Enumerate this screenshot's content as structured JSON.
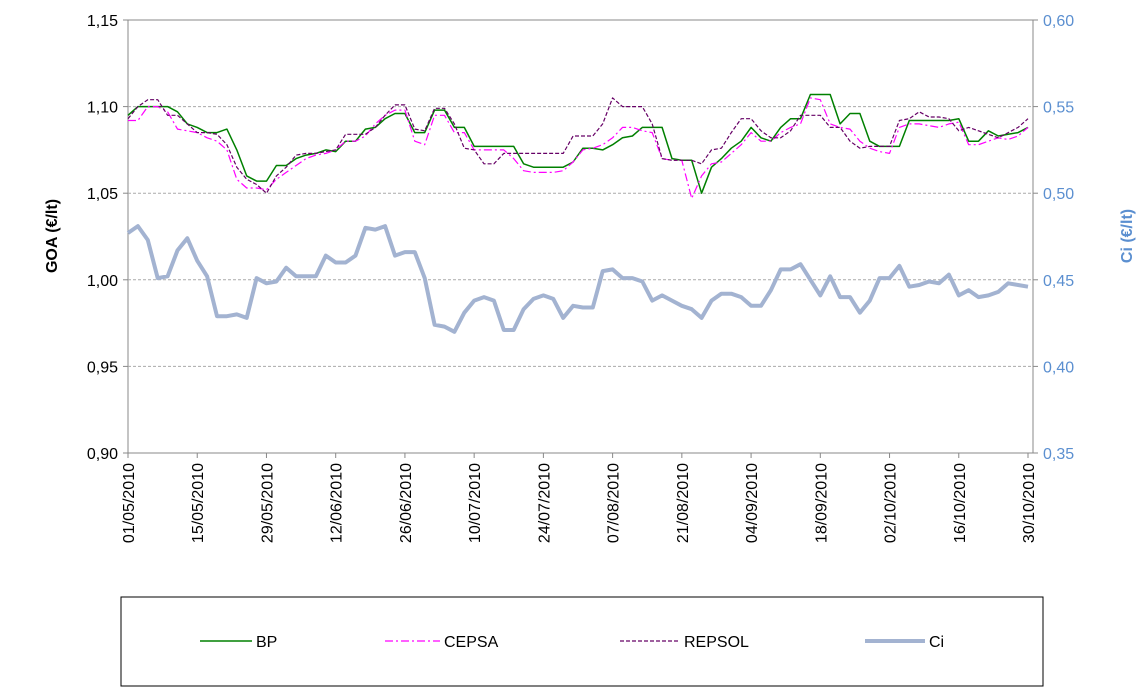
{
  "chart_data": {
    "type": "line",
    "x": [
      "01/05/2010",
      "03/05/2010",
      "05/05/2010",
      "07/05/2010",
      "09/05/2010",
      "11/05/2010",
      "13/05/2010",
      "15/05/2010",
      "17/05/2010",
      "19/05/2010",
      "21/05/2010",
      "23/05/2010",
      "25/05/2010",
      "27/05/2010",
      "29/05/2010",
      "31/05/2010",
      "02/06/2010",
      "04/06/2010",
      "06/06/2010",
      "08/06/2010",
      "10/06/2010",
      "12/06/2010",
      "14/06/2010",
      "16/06/2010",
      "18/06/2010",
      "20/06/2010",
      "22/06/2010",
      "24/06/2010",
      "26/06/2010",
      "28/06/2010",
      "30/06/2010",
      "02/07/2010",
      "04/07/2010",
      "06/07/2010",
      "08/07/2010",
      "10/07/2010",
      "12/07/2010",
      "14/07/2010",
      "16/07/2010",
      "18/07/2010",
      "20/07/2010",
      "22/07/2010",
      "24/07/2010",
      "26/07/2010",
      "28/07/2010",
      "30/07/2010",
      "01/08/2010",
      "03/08/2010",
      "05/08/2010",
      "07/08/2010",
      "09/08/2010",
      "11/08/2010",
      "13/08/2010",
      "15/08/2010",
      "17/08/2010",
      "19/08/2010",
      "21/08/2010",
      "23/08/2010",
      "25/08/2010",
      "27/08/2010",
      "29/08/2010",
      "31/08/2010",
      "02/09/2010",
      "04/09/2010",
      "06/09/2010",
      "08/09/2010",
      "10/09/2010",
      "12/09/2010",
      "14/09/2010",
      "16/09/2010",
      "18/09/2010",
      "20/09/2010",
      "22/09/2010",
      "24/09/2010",
      "26/09/2010",
      "28/09/2010",
      "30/09/2010",
      "02/10/2010",
      "04/10/2010",
      "06/10/2010",
      "08/10/2010",
      "10/10/2010",
      "12/10/2010",
      "14/10/2010",
      "16/10/2010",
      "18/10/2010",
      "20/10/2010",
      "22/10/2010",
      "24/10/2010",
      "26/10/2010",
      "28/10/2010",
      "30/10/2010"
    ],
    "series": [
      {
        "name": "BP",
        "color": "#008000",
        "dash": "solid",
        "width": 1.5,
        "values": [
          1.095,
          1.1,
          1.1,
          1.1,
          1.1,
          1.097,
          1.09,
          1.088,
          1.085,
          1.085,
          1.087,
          1.075,
          1.06,
          1.057,
          1.057,
          1.066,
          1.066,
          1.07,
          1.072,
          1.073,
          1.075,
          1.074,
          1.08,
          1.08,
          1.087,
          1.088,
          1.093,
          1.096,
          1.096,
          1.085,
          1.085,
          1.098,
          1.098,
          1.088,
          1.088,
          1.077,
          1.077,
          1.077,
          1.077,
          1.077,
          1.067,
          1.065,
          1.065,
          1.065,
          1.065,
          1.068,
          1.076,
          1.076,
          1.075,
          1.078,
          1.082,
          1.083,
          1.088,
          1.088,
          1.088,
          1.07,
          1.069,
          1.069,
          1.05,
          1.065,
          1.07,
          1.076,
          1.08,
          1.088,
          1.082,
          1.08,
          1.088,
          1.093,
          1.093,
          1.107,
          1.107,
          1.107,
          1.09,
          1.096,
          1.096,
          1.08,
          1.077,
          1.077,
          1.077,
          1.092,
          1.092,
          1.092,
          1.092,
          1.092,
          1.093,
          1.08,
          1.08,
          1.086,
          1.083,
          1.084,
          1.085,
          1.088
        ]
      },
      {
        "name": "CEPSA",
        "color": "#ff00ff",
        "dash": "dashdot",
        "width": 1.2,
        "values": [
          1.092,
          1.092,
          1.1,
          1.1,
          1.097,
          1.087,
          1.086,
          1.085,
          1.082,
          1.08,
          1.075,
          1.058,
          1.053,
          1.053,
          1.052,
          1.058,
          1.062,
          1.066,
          1.07,
          1.072,
          1.073,
          1.075,
          1.08,
          1.08,
          1.083,
          1.09,
          1.095,
          1.098,
          1.098,
          1.08,
          1.078,
          1.095,
          1.095,
          1.085,
          1.085,
          1.075,
          1.075,
          1.075,
          1.075,
          1.07,
          1.063,
          1.062,
          1.062,
          1.062,
          1.063,
          1.068,
          1.075,
          1.076,
          1.078,
          1.082,
          1.088,
          1.088,
          1.086,
          1.085,
          1.07,
          1.069,
          1.069,
          1.047,
          1.06,
          1.067,
          1.068,
          1.073,
          1.078,
          1.085,
          1.08,
          1.08,
          1.085,
          1.088,
          1.09,
          1.105,
          1.104,
          1.09,
          1.088,
          1.087,
          1.08,
          1.076,
          1.074,
          1.073,
          1.088,
          1.09,
          1.09,
          1.089,
          1.088,
          1.09,
          1.091,
          1.078,
          1.078,
          1.08,
          1.082,
          1.081,
          1.083,
          1.088
        ]
      },
      {
        "name": "REPSOL",
        "color": "#660066",
        "dash": "dash",
        "width": 1.2,
        "values": [
          1.093,
          1.1,
          1.104,
          1.104,
          1.095,
          1.095,
          1.09,
          1.085,
          1.085,
          1.084,
          1.078,
          1.065,
          1.058,
          1.055,
          1.05,
          1.06,
          1.065,
          1.072,
          1.073,
          1.073,
          1.074,
          1.075,
          1.084,
          1.084,
          1.084,
          1.088,
          1.095,
          1.101,
          1.101,
          1.087,
          1.086,
          1.099,
          1.099,
          1.09,
          1.076,
          1.075,
          1.067,
          1.067,
          1.073,
          1.073,
          1.073,
          1.073,
          1.073,
          1.073,
          1.073,
          1.083,
          1.083,
          1.083,
          1.09,
          1.105,
          1.1,
          1.1,
          1.1,
          1.09,
          1.07,
          1.069,
          1.069,
          1.069,
          1.067,
          1.075,
          1.076,
          1.085,
          1.093,
          1.093,
          1.086,
          1.082,
          1.082,
          1.086,
          1.095,
          1.095,
          1.095,
          1.088,
          1.088,
          1.08,
          1.076,
          1.077,
          1.077,
          1.077,
          1.092,
          1.093,
          1.097,
          1.094,
          1.094,
          1.093,
          1.086,
          1.088,
          1.086,
          1.084,
          1.082,
          1.085,
          1.088,
          1.093
        ]
      },
      {
        "name": "Ci",
        "color": "#a3b3d1",
        "dash": "solid",
        "width": 4,
        "axis": "y2",
        "values": [
          0.477,
          0.481,
          0.473,
          0.451,
          0.452,
          0.467,
          0.474,
          0.461,
          0.452,
          0.429,
          0.429,
          0.43,
          0.428,
          0.451,
          0.448,
          0.449,
          0.457,
          0.452,
          0.452,
          0.452,
          0.464,
          0.46,
          0.46,
          0.464,
          0.48,
          0.479,
          0.481,
          0.464,
          0.466,
          0.466,
          0.451,
          0.424,
          0.423,
          0.42,
          0.431,
          0.438,
          0.44,
          0.438,
          0.421,
          0.421,
          0.433,
          0.439,
          0.441,
          0.439,
          0.428,
          0.435,
          0.434,
          0.434,
          0.455,
          0.456,
          0.451,
          0.451,
          0.449,
          0.438,
          0.441,
          0.438,
          0.435,
          0.433,
          0.428,
          0.438,
          0.442,
          0.442,
          0.44,
          0.435,
          0.435,
          0.444,
          0.456,
          0.456,
          0.459,
          0.45,
          0.441,
          0.452,
          0.44,
          0.44,
          0.431,
          0.438,
          0.451,
          0.451,
          0.458,
          0.446,
          0.447,
          0.449,
          0.448,
          0.453,
          0.441,
          0.444,
          0.44,
          0.441,
          0.443,
          0.448,
          0.447,
          0.446
        ]
      }
    ],
    "xlim": [
      "01/05/2010",
      "30/10/2010"
    ],
    "xticks": [
      "01/05/2010",
      "15/05/2010",
      "29/05/2010",
      "12/06/2010",
      "26/06/2010",
      "10/07/2010",
      "24/07/2010",
      "07/08/2010",
      "21/08/2010",
      "04/09/2010",
      "18/09/2010",
      "02/10/2010",
      "16/10/2010",
      "30/10/2010"
    ],
    "ylim": [
      0.9,
      1.15
    ],
    "yticks": [
      {
        "value": 0.9,
        "label": "0,90"
      },
      {
        "value": 0.95,
        "label": "0,95"
      },
      {
        "value": 1.0,
        "label": "1,00"
      },
      {
        "value": 1.05,
        "label": "1,05"
      },
      {
        "value": 1.1,
        "label": "1,10"
      },
      {
        "value": 1.15,
        "label": "1,15"
      }
    ],
    "y2lim": [
      0.35,
      0.6
    ],
    "y2ticks": [
      {
        "value": 0.35,
        "label": "0,35"
      },
      {
        "value": 0.4,
        "label": "0,40"
      },
      {
        "value": 0.45,
        "label": "0,45"
      },
      {
        "value": 0.5,
        "label": "0,50"
      },
      {
        "value": 0.55,
        "label": "0,55"
      },
      {
        "value": 0.6,
        "label": "0,60"
      }
    ],
    "ylabel": "GOA (€/lt)",
    "y2label": "Ci (€/lt)",
    "grid": true,
    "legend": "bottom"
  }
}
